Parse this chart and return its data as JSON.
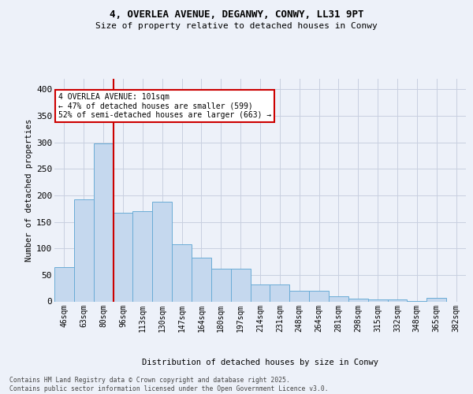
{
  "title_line1": "4, OVERLEA AVENUE, DEGANWY, CONWY, LL31 9PT",
  "title_line2": "Size of property relative to detached houses in Conwy",
  "xlabel": "Distribution of detached houses by size in Conwy",
  "ylabel": "Number of detached properties",
  "categories": [
    "46sqm",
    "63sqm",
    "80sqm",
    "96sqm",
    "113sqm",
    "130sqm",
    "147sqm",
    "164sqm",
    "180sqm",
    "197sqm",
    "214sqm",
    "231sqm",
    "248sqm",
    "264sqm",
    "281sqm",
    "298sqm",
    "315sqm",
    "332sqm",
    "348sqm",
    "365sqm",
    "382sqm"
  ],
  "values": [
    65,
    192,
    298,
    168,
    170,
    188,
    108,
    83,
    62,
    62,
    32,
    32,
    20,
    20,
    9,
    5,
    4,
    4,
    1,
    7,
    0
  ],
  "bar_color": "#c5d8ee",
  "bar_edge_color": "#6aacd6",
  "background_color": "#edf1f9",
  "grid_color": "#c8cfe0",
  "vline_x": 2.5,
  "vline_color": "#cc0000",
  "annotation_text": "4 OVERLEA AVENUE: 101sqm\n← 47% of detached houses are smaller (599)\n52% of semi-detached houses are larger (663) →",
  "footnote": "Contains HM Land Registry data © Crown copyright and database right 2025.\nContains public sector information licensed under the Open Government Licence v3.0.",
  "ylim": [
    0,
    420
  ],
  "yticks": [
    0,
    50,
    100,
    150,
    200,
    250,
    300,
    350,
    400
  ]
}
